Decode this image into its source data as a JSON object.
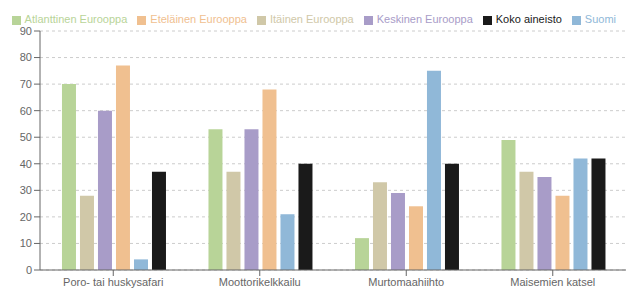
{
  "chart_data": {
    "type": "bar",
    "categories": [
      "Poro- tai huskysafari",
      "Moottorikelkkailu",
      "Murtomaahiihto",
      "Maisemien katsel"
    ],
    "series": [
      {
        "name": "Atlanttinen Eurooppa",
        "color": "#b8d498",
        "values": [
          70,
          53,
          12,
          49
        ]
      },
      {
        "name": "Itäinen Eurooppa",
        "color": "#d0c8a8",
        "values": [
          28,
          37,
          33,
          37
        ]
      },
      {
        "name": "Keskinen Eurooppa",
        "color": "#a89cc8",
        "values": [
          60,
          53,
          29,
          35
        ]
      },
      {
        "name": "Eteläinen Eurooppa",
        "color": "#f0c090",
        "values": [
          77,
          68,
          24,
          28
        ]
      },
      {
        "name": "Suomi",
        "color": "#90b8d8",
        "values": [
          4,
          21,
          75,
          42
        ]
      },
      {
        "name": "Koko aineisto",
        "color": "#1a1a1a",
        "values": [
          37,
          40,
          40,
          42
        ]
      }
    ],
    "ylim": [
      0,
      90
    ],
    "yticks": [
      0,
      10,
      20,
      30,
      40,
      50,
      60,
      70,
      80,
      90
    ],
    "grid": true,
    "legend": "upper right"
  }
}
